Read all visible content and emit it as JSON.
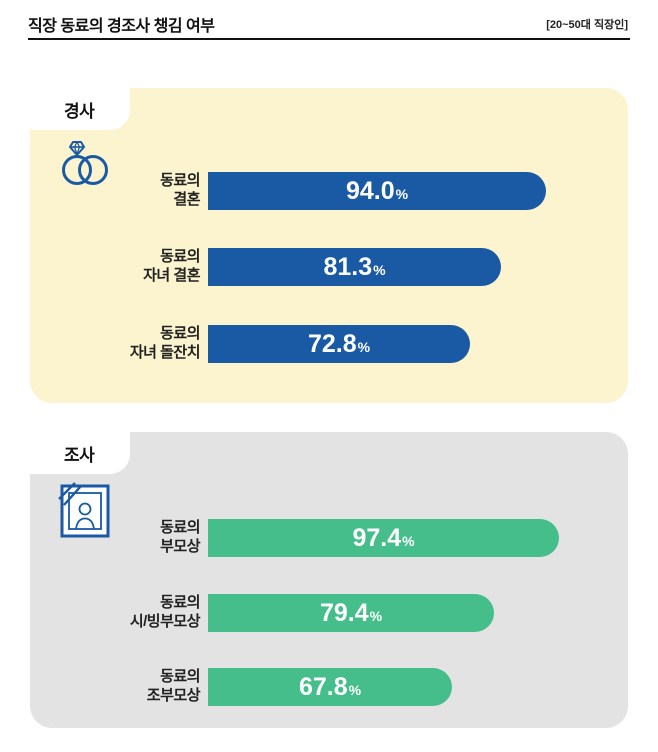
{
  "header": {
    "title": "직장 동료의 경조사 챙김 여부",
    "note": "[20~50대 직장인]"
  },
  "colors": {
    "good_bar": "#1A5AA5",
    "bad_bar": "#45BE8B",
    "good_panel_bg": "#FBF4CE",
    "bad_panel_bg": "#E3E3E3",
    "icon_stroke": "#1A5AA5"
  },
  "sections": {
    "good": {
      "label": "경사",
      "icon": "wedding-rings-icon",
      "rows": [
        {
          "label": "동료의\n결혼",
          "value": 94.0,
          "value_display": "94.0",
          "unit": "%"
        },
        {
          "label": "동료의\n자녀 결혼",
          "value": 81.3,
          "value_display": "81.3",
          "unit": "%"
        },
        {
          "label": "동료의\n자녀 돌잔치",
          "value": 72.8,
          "value_display": "72.8",
          "unit": "%"
        }
      ]
    },
    "bad": {
      "label": "조사",
      "icon": "funeral-portrait-icon",
      "rows": [
        {
          "label": "동료의\n부모상",
          "value": 97.4,
          "value_display": "97.4",
          "unit": "%"
        },
        {
          "label": "동료의\n시/빙부모상",
          "value": 79.4,
          "value_display": "79.4",
          "unit": "%"
        },
        {
          "label": "동료의\n조부모상",
          "value": 67.8,
          "value_display": "67.8",
          "unit": "%"
        }
      ]
    }
  },
  "chart_data": [
    {
      "type": "bar",
      "orientation": "horizontal",
      "title": "경사",
      "categories": [
        "동료의 결혼",
        "동료의 자녀 결혼",
        "동료의 자녀 돌잔치"
      ],
      "values": [
        94.0,
        81.3,
        72.8
      ],
      "unit": "%",
      "bar_color": "#1A5AA5",
      "xlim": [
        0,
        100
      ],
      "grid": false,
      "legend": "none"
    },
    {
      "type": "bar",
      "orientation": "horizontal",
      "title": "조사",
      "categories": [
        "동료의 부모상",
        "동료의 시/빙부모상",
        "동료의 조부모상"
      ],
      "values": [
        97.4,
        79.4,
        67.8
      ],
      "unit": "%",
      "bar_color": "#45BE8B",
      "xlim": [
        0,
        100
      ],
      "grid": false,
      "legend": "none"
    }
  ]
}
